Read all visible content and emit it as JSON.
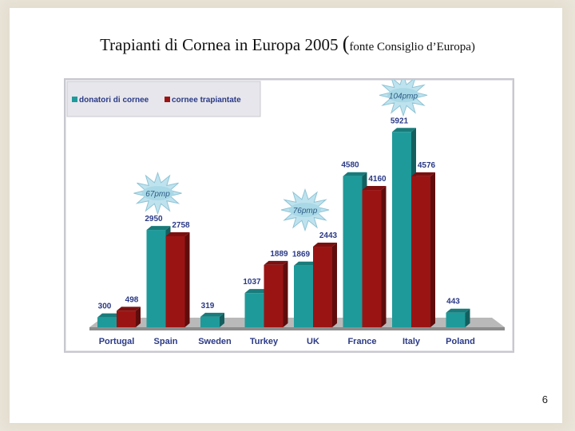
{
  "slide": {
    "title_main": "Trapianti di Cornea in Europa 2005 ",
    "title_paren_open": "(",
    "title_source": "fonte Consiglio d’Europa)",
    "page_number": "6"
  },
  "colors": {
    "donors": "#1f9a9a",
    "transplants": "#9b1414",
    "floor": "#8c8c8c",
    "label": "#2b3a86",
    "legend_bg": "#e6e6ec"
  },
  "chart_data": {
    "type": "bar",
    "categories": [
      "Portugal",
      "Spain",
      "Sweden",
      "Turkey",
      "UK",
      "France",
      "Italy",
      "Poland"
    ],
    "series": [
      {
        "name": "donatori di cornee",
        "values": [
          300,
          2950,
          319,
          1037,
          1869,
          4580,
          5921,
          443
        ]
      },
      {
        "name": "cornee trapiantate",
        "values": [
          498,
          2758,
          null,
          1889,
          2443,
          4160,
          4576,
          null
        ]
      }
    ],
    "annotations": [
      {
        "category": "Spain",
        "text": "67pmp"
      },
      {
        "category": "UK",
        "text": "76pmp"
      },
      {
        "category": "Italy",
        "text": "104pmp"
      }
    ],
    "ylim": [
      0,
      6000
    ],
    "grid": false,
    "legend": "top-left"
  }
}
